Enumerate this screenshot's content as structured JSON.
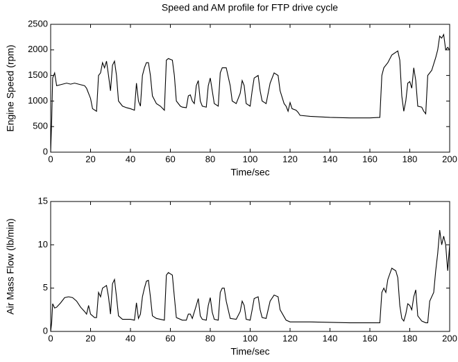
{
  "chart_data": [
    {
      "type": "line",
      "title": "Speed and AM profile for FTP drive cycle",
      "x_label": "Time/sec",
      "y_label": "Engine Speed (rpm)",
      "xlim": [
        0,
        200
      ],
      "xticks": [
        0,
        20,
        40,
        60,
        80,
        100,
        120,
        140,
        160,
        180,
        200
      ],
      "ylim": [
        0,
        2500
      ],
      "yticks": [
        0,
        500,
        1000,
        1500,
        2000,
        2500
      ],
      "color": "#000000",
      "x": [
        0,
        0.5,
        1,
        2,
        3,
        5,
        8,
        10,
        12,
        15,
        17,
        18,
        20,
        21,
        23,
        24,
        25,
        26,
        27,
        28,
        29,
        30,
        31,
        32,
        33,
        34,
        36,
        38,
        40,
        42,
        43,
        44,
        45,
        46,
        47,
        48,
        49,
        50,
        51,
        53,
        55,
        57,
        58,
        59,
        61,
        62,
        63,
        65,
        66,
        68,
        69,
        70,
        71,
        72,
        73,
        74,
        75,
        76,
        78,
        79,
        80,
        81,
        82,
        84,
        85,
        86,
        88,
        90,
        91,
        93,
        95,
        96,
        97,
        98,
        100,
        101,
        102,
        104,
        105,
        106,
        108,
        110,
        112,
        114,
        115,
        117,
        118,
        119,
        120,
        121,
        123,
        124,
        125,
        130,
        140,
        150,
        160,
        165,
        166,
        167,
        169,
        171,
        174,
        175,
        176,
        177,
        178,
        179,
        180,
        181,
        182,
        183,
        184,
        186,
        187,
        188,
        189,
        191,
        193,
        194,
        195,
        196,
        197,
        198,
        199,
        200
      ],
      "values": [
        0,
        600,
        1450,
        1550,
        1300,
        1320,
        1350,
        1330,
        1350,
        1320,
        1300,
        1250,
        1050,
        850,
        800,
        1500,
        1550,
        1750,
        1650,
        1780,
        1500,
        1200,
        1700,
        1780,
        1500,
        1000,
        900,
        870,
        850,
        820,
        1350,
        1000,
        900,
        1500,
        1650,
        1750,
        1750,
        1500,
        1100,
        950,
        900,
        820,
        1800,
        1830,
        1800,
        1500,
        1000,
        900,
        880,
        870,
        1100,
        1120,
        1000,
        950,
        1300,
        1400,
        1000,
        900,
        880,
        1300,
        1450,
        1200,
        950,
        900,
        1550,
        1650,
        1650,
        1300,
        1000,
        950,
        1150,
        1400,
        1300,
        950,
        900,
        1200,
        1450,
        1500,
        1200,
        1000,
        950,
        1350,
        1550,
        1500,
        1200,
        950,
        900,
        800,
        970,
        850,
        820,
        780,
        720,
        700,
        680,
        670,
        670,
        680,
        1500,
        1650,
        1750,
        1900,
        1980,
        1800,
        1100,
        800,
        1000,
        1350,
        1380,
        1250,
        1650,
        1400,
        900,
        880,
        800,
        750,
        1500,
        1600,
        1850,
        2000,
        2270,
        2230,
        2300,
        2000,
        2050,
        2000
      ]
    },
    {
      "type": "line",
      "x_label": "Time/sec",
      "y_label": "Air Mass Flow (lb/min)",
      "xlim": [
        0,
        200
      ],
      "xticks": [
        0,
        20,
        40,
        60,
        80,
        100,
        120,
        140,
        160,
        180,
        200
      ],
      "ylim": [
        0,
        15
      ],
      "yticks": [
        0,
        5,
        10,
        15
      ],
      "color": "#000000",
      "x": [
        0,
        0.5,
        1,
        2,
        3,
        5,
        7,
        9,
        11,
        13,
        15,
        17,
        18,
        19,
        20,
        22,
        23,
        24,
        25,
        26,
        28,
        29,
        30,
        31,
        32,
        33,
        34,
        36,
        40,
        42,
        43,
        44,
        45,
        46,
        47,
        48,
        49,
        50,
        51,
        53,
        55,
        57,
        58,
        59,
        61,
        62,
        63,
        66,
        68,
        69,
        70,
        71,
        73,
        74,
        75,
        76,
        78,
        79,
        80,
        81,
        82,
        84,
        85,
        86,
        87,
        88,
        90,
        93,
        95,
        96,
        97,
        98,
        100,
        101,
        102,
        104,
        105,
        106,
        108,
        110,
        112,
        114,
        115,
        117,
        118,
        120,
        130,
        140,
        150,
        160,
        165,
        166,
        167,
        168,
        169,
        171,
        173,
        174,
        175,
        176,
        177,
        178,
        179,
        180,
        181,
        182,
        183,
        184,
        186,
        188,
        189,
        190,
        192,
        193,
        194,
        195,
        196,
        197,
        198,
        199,
        200
      ],
      "values": [
        0,
        1,
        3.2,
        2.7,
        2.8,
        3.3,
        3.9,
        4.0,
        3.9,
        3.5,
        2.8,
        2.3,
        2.0,
        3.0,
        2.0,
        1.6,
        1.6,
        4.5,
        4.0,
        5.0,
        5.3,
        4.0,
        2.0,
        5.5,
        6.0,
        4.0,
        1.8,
        1.4,
        1.4,
        1.3,
        3.3,
        1.5,
        2.0,
        4.0,
        5.0,
        5.8,
        5.9,
        4.0,
        1.8,
        1.5,
        1.4,
        1.3,
        6.5,
        6.8,
        6.5,
        4.0,
        1.6,
        1.3,
        1.3,
        2.0,
        2.0,
        1.5,
        3.0,
        3.8,
        1.8,
        1.4,
        1.3,
        3.0,
        3.9,
        2.2,
        1.4,
        1.3,
        4.5,
        5.0,
        5.0,
        3.5,
        1.5,
        1.4,
        2.3,
        3.5,
        3.0,
        1.4,
        1.3,
        2.5,
        3.8,
        4.0,
        2.5,
        1.6,
        1.5,
        3.5,
        4.2,
        4.0,
        2.5,
        1.7,
        1.3,
        1.1,
        1.1,
        1.05,
        1.0,
        1.0,
        1.0,
        4.5,
        5.0,
        4.5,
        6.0,
        7.3,
        7.0,
        6.2,
        3.0,
        1.5,
        1.2,
        2.0,
        3.2,
        3.0,
        2.5,
        4.0,
        4.8,
        1.8,
        1.2,
        1.0,
        1.0,
        3.5,
        4.5,
        7.0,
        9.0,
        11.7,
        10.0,
        11.0,
        10.0,
        7.0,
        10.0
      ]
    }
  ]
}
